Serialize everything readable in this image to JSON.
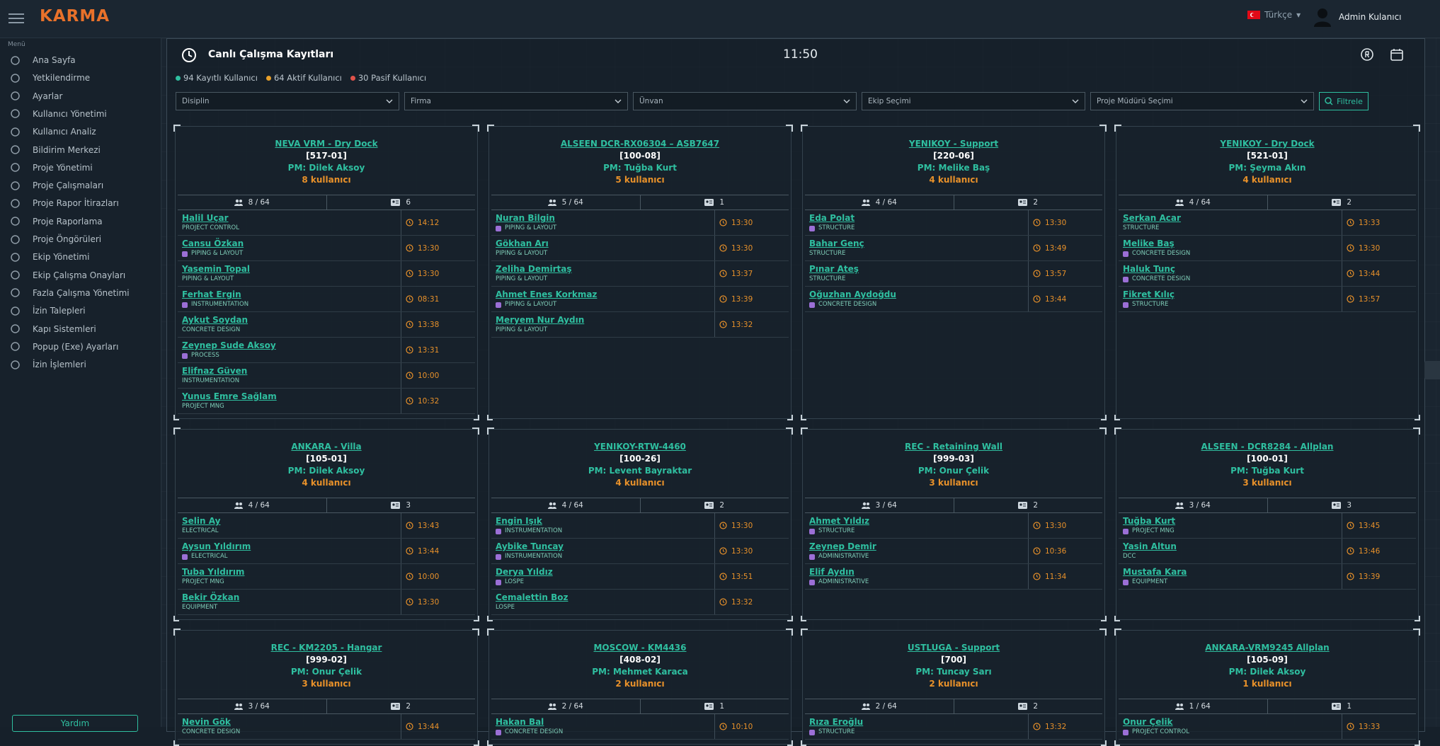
{
  "header": {
    "logo": "KARMA",
    "language": "Türkçe",
    "user": "Admin Kulanıcı"
  },
  "sidebar": {
    "heading": "Menü",
    "items": [
      "Ana Sayfa",
      "Yetkilendirme",
      "Ayarlar",
      "Kullanıcı Yönetimi",
      "Kullanıcı Analiz",
      "Bildirim Merkezi",
      "Proje Yönetimi",
      "Proje Çalışmaları",
      "Proje Rapor İtirazları",
      "Proje Raporlama",
      "Proje Öngörüleri",
      "Ekip Yönetimi",
      "Ekip Çalışma Onayları",
      "Fazla Çalışma Yönetimi",
      "İzin Talepleri",
      "Kapı Sistemleri",
      "Popup (Exe) Ayarları",
      "İzin İşlemleri"
    ],
    "help": "Yardım"
  },
  "panel": {
    "title": "Canlı Çalışma Kayıtları",
    "time": "11:50",
    "stats": [
      "94 Kayıtlı Kullanıcı",
      "64 Aktif Kullanıcı",
      "30 Pasif Kullanıcı"
    ],
    "filters": [
      "Disiplin",
      "Firma",
      "Ünvan",
      "Ekip Seçimi",
      "Proje Müdürü Seçimi"
    ],
    "filter_button": "Filtrele"
  },
  "cards": [
    {
      "title": "NEVA VRM - Dry Dock",
      "code": "[517-01]",
      "pm": "PM: Dilek Aksoy",
      "users": "8 kullanıcı",
      "active": "8 / 64",
      "cards": "6",
      "members": [
        {
          "name": "Halil Uçar",
          "role": "PROJECT CONTROL",
          "badge": false,
          "time": "14:12"
        },
        {
          "name": "Cansu Özkan",
          "role": "PIPING & LAYOUT",
          "badge": true,
          "time": "13:30"
        },
        {
          "name": "Yasemin Topal",
          "role": "PIPING & LAYOUT",
          "badge": false,
          "time": "13:30"
        },
        {
          "name": "Ferhat Ergin",
          "role": "INSTRUMENTATION",
          "badge": true,
          "time": "08:31"
        },
        {
          "name": "Aykut Soydan",
          "role": "CONCRETE DESIGN",
          "badge": false,
          "time": "13:38"
        },
        {
          "name": "Zeynep Sude Aksoy",
          "role": "PROCESS",
          "badge": true,
          "time": "13:31"
        },
        {
          "name": "Elifnaz Güven",
          "role": "INSTRUMENTATION",
          "badge": false,
          "time": "10:00"
        },
        {
          "name": "Yunus Emre Sağlam",
          "role": "PROJECT MNG",
          "badge": false,
          "time": "10:32"
        }
      ]
    },
    {
      "title": "ALSEEN DCR-RX06304 – ASB7647",
      "code": "[100-08]",
      "pm": "PM: Tuğba Kurt",
      "users": "5 kullanıcı",
      "active": "5 / 64",
      "cards": "1",
      "members": [
        {
          "name": "Nuran Bilgin",
          "role": "PIPING & LAYOUT",
          "badge": true,
          "time": "13:30"
        },
        {
          "name": "Gökhan Arı",
          "role": "PIPING & LAYOUT",
          "badge": false,
          "time": "13:30"
        },
        {
          "name": "Zeliha Demirtaş",
          "role": "PIPING & LAYOUT",
          "badge": false,
          "time": "13:37"
        },
        {
          "name": "Ahmet Enes Korkmaz",
          "role": "PIPING & LAYOUT",
          "badge": true,
          "time": "13:39"
        },
        {
          "name": "Meryem Nur Aydın",
          "role": "PIPING & LAYOUT",
          "badge": false,
          "time": "13:32"
        }
      ]
    },
    {
      "title": "YENIKOY - Support",
      "code": "[220-06]",
      "pm": "PM: Melike Baş",
      "users": "4 kullanıcı",
      "active": "4 / 64",
      "cards": "2",
      "members": [
        {
          "name": "Eda Polat",
          "role": "STRUCTURE",
          "badge": true,
          "time": "13:30"
        },
        {
          "name": "Bahar Genç",
          "role": "STRUCTURE",
          "badge": false,
          "time": "13:49"
        },
        {
          "name": "Pınar Ateş",
          "role": "STRUCTURE",
          "badge": false,
          "time": "13:57"
        },
        {
          "name": "Oğuzhan Aydoğdu",
          "role": "CONCRETE DESIGN",
          "badge": true,
          "time": "13:44"
        }
      ]
    },
    {
      "title": "YENIKOY - Dry Dock",
      "code": "[521-01]",
      "pm": "PM: Şeyma Akın",
      "users": "4 kullanıcı",
      "active": "4 / 64",
      "cards": "2",
      "members": [
        {
          "name": "Serkan Acar",
          "role": "STRUCTURE",
          "badge": false,
          "time": "13:33"
        },
        {
          "name": "Melike Baş",
          "role": "CONCRETE DESIGN",
          "badge": true,
          "time": "13:30"
        },
        {
          "name": "Haluk Tunç",
          "role": "CONCRETE DESIGN",
          "badge": true,
          "time": "13:44"
        },
        {
          "name": "Fikret Kılıç",
          "role": "STRUCTURE",
          "badge": true,
          "time": "13:57"
        }
      ]
    },
    {
      "title": "ANKARA - Villa",
      "code": "[105-01]",
      "pm": "PM: Dilek Aksoy",
      "users": "4 kullanıcı",
      "active": "4 / 64",
      "cards": "3",
      "members": [
        {
          "name": "Selin Ay",
          "role": "ELECTRICAL",
          "badge": false,
          "time": "13:43"
        },
        {
          "name": "Aysun Yıldırım",
          "role": "ELECTRICAL",
          "badge": true,
          "time": "13:44"
        },
        {
          "name": "Tuba Yıldırım",
          "role": "PROJECT MNG",
          "badge": false,
          "time": "10:00"
        },
        {
          "name": "Bekir Özkan",
          "role": "EQUIPMENT",
          "badge": false,
          "time": "13:30"
        }
      ]
    },
    {
      "title": "YENIKOY-RTW-4460",
      "code": "[100-26]",
      "pm": "PM: Levent Bayraktar",
      "users": "4 kullanıcı",
      "active": "4 / 64",
      "cards": "2",
      "members": [
        {
          "name": "Engin Işık",
          "role": "INSTRUMENTATION",
          "badge": true,
          "time": "13:30"
        },
        {
          "name": "Aybike Tuncay",
          "role": "INSTRUMENTATION",
          "badge": true,
          "time": "13:30"
        },
        {
          "name": "Derya Yıldız",
          "role": "LOSPE",
          "badge": true,
          "time": "13:51"
        },
        {
          "name": "Cemalettin Boz",
          "role": "LOSPE",
          "badge": false,
          "time": "13:32"
        }
      ]
    },
    {
      "title": "REC - Retaining Wall",
      "code": "[999-03]",
      "pm": "PM: Onur Çelik",
      "users": "3 kullanıcı",
      "active": "3 / 64",
      "cards": "2",
      "members": [
        {
          "name": "Ahmet Yıldız",
          "role": "STRUCTURE",
          "badge": true,
          "time": "13:30"
        },
        {
          "name": "Zeynep Demir",
          "role": "ADMINISTRATIVE",
          "badge": true,
          "time": "10:36"
        },
        {
          "name": "Elif Aydın",
          "role": "ADMINISTRATIVE",
          "badge": true,
          "time": "11:34"
        }
      ]
    },
    {
      "title": "ALSEEN - DCR8284 - Allplan",
      "code": "[100-01]",
      "pm": "PM: Tuğba Kurt",
      "users": "3 kullanıcı",
      "active": "3 / 64",
      "cards": "3",
      "members": [
        {
          "name": "Tuğba Kurt",
          "role": "PROJECT MNG",
          "badge": true,
          "time": "13:45"
        },
        {
          "name": "Yasin Altun",
          "role": "DCC",
          "badge": false,
          "time": "13:46"
        },
        {
          "name": "Mustafa Kara",
          "role": "EQUIPMENT",
          "badge": true,
          "time": "13:39"
        }
      ]
    },
    {
      "title": "REC - KM2205 - Hangar",
      "code": "[999-02]",
      "pm": "PM: Onur Çelik",
      "users": "3 kullanıcı",
      "active": "3 / 64",
      "cards": "2",
      "members": [
        {
          "name": "Nevin Gök",
          "role": "CONCRETE DESIGN",
          "badge": false,
          "time": "13:44"
        }
      ]
    },
    {
      "title": "MOSCOW - KM4436",
      "code": "[408-02]",
      "pm": "PM: Mehmet Karaca",
      "users": "2 kullanıcı",
      "active": "2 / 64",
      "cards": "1",
      "members": [
        {
          "name": "Hakan Bal",
          "role": "CONCRETE DESIGN",
          "badge": true,
          "time": "10:10"
        }
      ]
    },
    {
      "title": "USTLUGA - Support",
      "code": "[700]",
      "pm": "PM: Tuncay Sarı",
      "users": "2 kullanıcı",
      "active": "2 / 64",
      "cards": "2",
      "members": [
        {
          "name": "Rıza Eroğlu",
          "role": "STRUCTURE",
          "badge": true,
          "time": "13:32"
        }
      ]
    },
    {
      "title": "ANKARA-VRM9245 Allplan",
      "code": "[105-09]",
      "pm": "PM: Dilek Aksoy",
      "users": "1 kullanıcı",
      "active": "1 / 64",
      "cards": "1",
      "members": [
        {
          "name": "Onur Çelik",
          "role": "PROJECT CONTROL",
          "badge": true,
          "time": "13:33"
        }
      ]
    }
  ]
}
